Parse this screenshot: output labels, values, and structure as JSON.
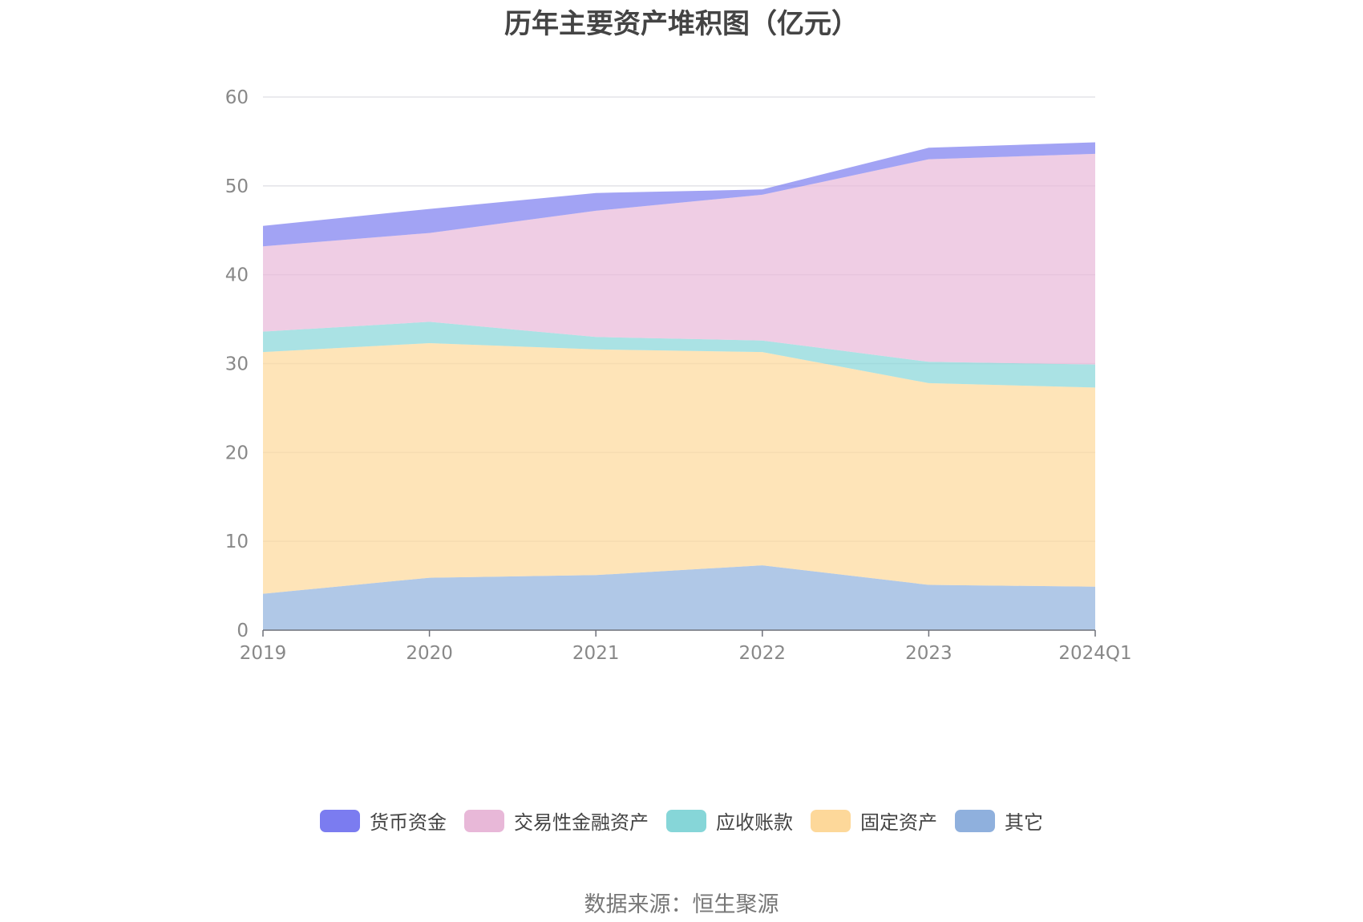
{
  "chart_data": {
    "type": "area",
    "stacked": true,
    "title": "历年主要资产堆积图（亿元）",
    "xlabel": "",
    "ylabel": "",
    "categories": [
      "2019",
      "2020",
      "2021",
      "2022",
      "2023",
      "2024Q1"
    ],
    "ylim": [
      0,
      60
    ],
    "yticks": [
      0,
      10,
      20,
      30,
      40,
      50,
      60
    ],
    "grid": true,
    "legend_position": "bottom",
    "series": [
      {
        "name": "其它",
        "color": "#8fb0dd",
        "values": [
          4.1,
          5.9,
          6.2,
          7.3,
          5.1,
          4.9
        ]
      },
      {
        "name": "固定资产",
        "color": "#fdd89a",
        "values": [
          27.2,
          26.4,
          25.4,
          24.0,
          22.7,
          22.4
        ]
      },
      {
        "name": "应收账款",
        "color": "#86d6d8",
        "values": [
          2.3,
          2.4,
          1.4,
          1.3,
          2.4,
          2.6
        ]
      },
      {
        "name": "交易性金融资产",
        "color": "#e8b8d8",
        "values": [
          9.6,
          10.0,
          14.2,
          16.4,
          22.8,
          23.7
        ]
      },
      {
        "name": "货币资金",
        "color": "#7b7cf0",
        "values": [
          2.3,
          2.7,
          2.0,
          0.6,
          1.3,
          1.3
        ]
      }
    ],
    "legend_order": [
      "货币资金",
      "交易性金融资产",
      "应收账款",
      "固定资产",
      "其它"
    ]
  },
  "source_note": "数据来源：恒生聚源"
}
